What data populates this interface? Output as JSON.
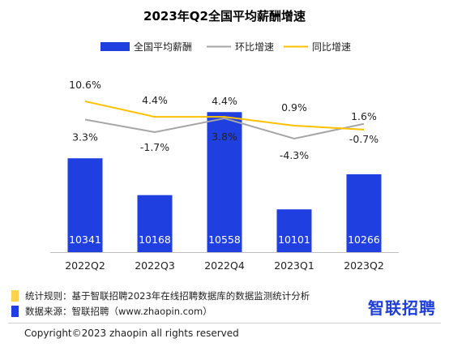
{
  "chart_data": {
    "type": "bar",
    "title": "2023年Q2全国平均薪酬增速",
    "categories": [
      "2022Q2",
      "2022Q3",
      "2022Q4",
      "2023Q1",
      "2023Q2"
    ],
    "series": [
      {
        "name": "全国平均薪酬",
        "type": "bar",
        "values": [
          10341,
          10168,
          10558,
          10101,
          10266
        ],
        "color": "#1f3fe0"
      },
      {
        "name": "环比增速",
        "type": "line",
        "values": [
          3.3,
          -1.7,
          3.8,
          -4.3,
          1.6
        ],
        "labels": [
          "3.3%",
          "-1.7%",
          "3.8%",
          "-4.3%",
          "1.6%"
        ],
        "color": "#a6a6a6"
      },
      {
        "name": "同比增速",
        "type": "line",
        "values": [
          10.6,
          4.4,
          4.4,
          0.9,
          -0.7
        ],
        "labels": [
          "10.6%",
          "4.4%",
          "4.4%",
          "0.9%",
          "-0.7%"
        ],
        "color": "#ffc000"
      }
    ],
    "legend_position": "top-center",
    "grid": false
  },
  "footer": {
    "rule_note": "统计规则：基于智联招聘2023年在线招聘数据库的数据监测统计分析",
    "source_note": "数据来源：智联招聘（www.zhaopin.com）",
    "rule_color": "#ffd24d",
    "source_color": "#1f3fe0",
    "brand": "智联招聘",
    "copyright": "Copyright©2023 zhaopin all rights reserved"
  }
}
